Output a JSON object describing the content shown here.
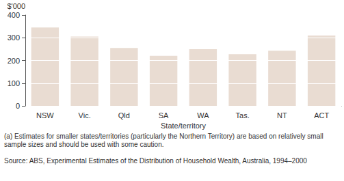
{
  "chart_data": {
    "type": "bar",
    "ylabel": "$'000",
    "xlabel": "State/territory",
    "categories": [
      "NSW",
      "Vic.",
      "Qld",
      "SA",
      "WA",
      "Tas.",
      "NT",
      "ACT"
    ],
    "values": [
      345,
      305,
      255,
      220,
      250,
      228,
      243,
      310
    ],
    "color": "#e9dcd2",
    "ylim": [
      0,
      400
    ],
    "yticks": [
      0,
      100,
      200,
      300,
      400
    ],
    "grid": true,
    "annotations": [
      "(a) Estimates for smaller states/territories (particularly the Northern Territory) are based on relatively small sample sizes and should be used with some caution.",
      "Source: ABS, Experimental Estimates of the Distribution of Household Wealth, Australia, 1994–2000"
    ]
  }
}
